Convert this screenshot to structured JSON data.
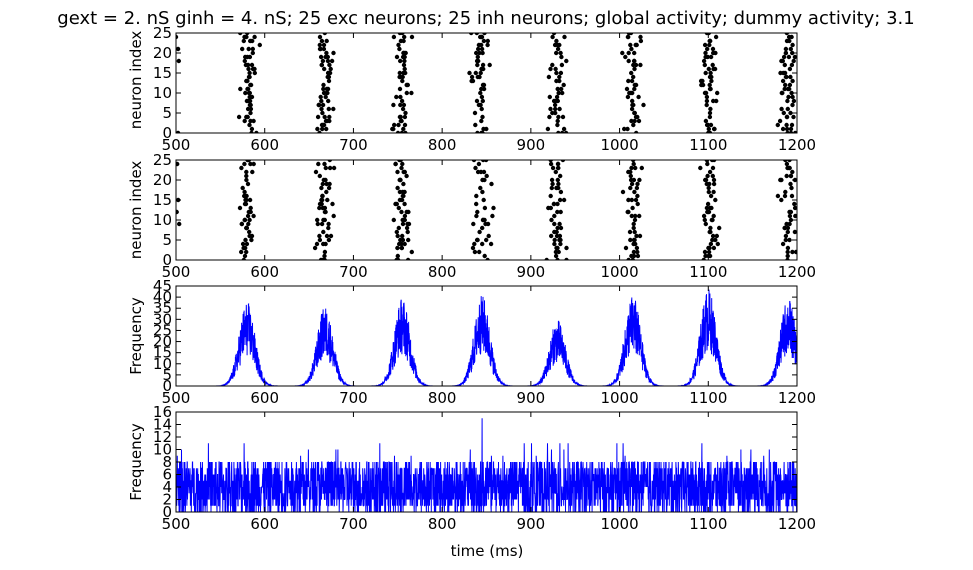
{
  "page_title": "gext = 2. nS ginh = 4. nS; 25 exc neurons; 25 inh neurons; global activity; dummy activity; 3.1",
  "colors": {
    "raster_point": "#000000",
    "trace": "#0000ff",
    "axes": "#000000",
    "background": "#ffffff"
  },
  "chart_data": [
    {
      "type": "scatter",
      "name": "excitatory-raster",
      "xlabel": "",
      "ylabel": "neuron index",
      "xlim": [
        500,
        1200
      ],
      "ylim": [
        0,
        25
      ],
      "xticks": [
        "500",
        "600",
        "700",
        "800",
        "900",
        "1000",
        "1100",
        "1200"
      ],
      "yticks": [
        "0",
        "5",
        "10",
        "15",
        "20",
        "25"
      ],
      "bursts": [
        {
          "center": 582,
          "width": 20
        },
        {
          "center": 668,
          "width": 22
        },
        {
          "center": 755,
          "width": 20
        },
        {
          "center": 843,
          "width": 22
        },
        {
          "center": 930,
          "width": 22
        },
        {
          "center": 1015,
          "width": 22
        },
        {
          "center": 1100,
          "width": 22
        },
        {
          "center": 1188,
          "width": 20
        }
      ],
      "grid": false
    },
    {
      "type": "scatter",
      "name": "inhibitory-raster",
      "xlabel": "",
      "ylabel": "neuron index",
      "xlim": [
        500,
        1200
      ],
      "ylim": [
        0,
        25
      ],
      "xticks": [
        "500",
        "600",
        "700",
        "800",
        "900",
        "1000",
        "1100",
        "1200"
      ],
      "yticks": [
        "0",
        "5",
        "10",
        "15",
        "20",
        "25"
      ],
      "bursts": [
        {
          "center": 580,
          "width": 18
        },
        {
          "center": 667,
          "width": 20
        },
        {
          "center": 755,
          "width": 20
        },
        {
          "center": 845,
          "width": 20
        },
        {
          "center": 930,
          "width": 22
        },
        {
          "center": 1015,
          "width": 20
        },
        {
          "center": 1102,
          "width": 20
        },
        {
          "center": 1190,
          "width": 20
        }
      ],
      "grid": false
    },
    {
      "type": "line",
      "name": "global-activity",
      "xlabel": "",
      "ylabel": "Frequency",
      "xlim": [
        500,
        1200
      ],
      "ylim": [
        0,
        45
      ],
      "xticks": [
        "500",
        "600",
        "700",
        "800",
        "900",
        "1000",
        "1100",
        "1200"
      ],
      "yticks": [
        "0",
        "5",
        "10",
        "15",
        "20",
        "25",
        "30",
        "35",
        "40",
        "45"
      ],
      "peaks": [
        {
          "x": 580,
          "y": 38
        },
        {
          "x": 668,
          "y": 36
        },
        {
          "x": 755,
          "y": 40
        },
        {
          "x": 845,
          "y": 41
        },
        {
          "x": 930,
          "y": 30
        },
        {
          "x": 1015,
          "y": 41
        },
        {
          "x": 1100,
          "y": 44
        },
        {
          "x": 1190,
          "y": 40
        }
      ],
      "grid": false
    },
    {
      "type": "line",
      "name": "dummy-activity",
      "xlabel": "time (ms)",
      "ylabel": "Frequency",
      "xlim": [
        500,
        1200
      ],
      "ylim": [
        0,
        16
      ],
      "xticks": [
        "500",
        "600",
        "700",
        "800",
        "900",
        "1000",
        "1100",
        "1200"
      ],
      "yticks": [
        "0",
        "2",
        "4",
        "6",
        "8",
        "10",
        "12",
        "14",
        "16"
      ],
      "baseline_range": [
        0,
        8
      ],
      "max_value": 15,
      "grid": false
    }
  ]
}
